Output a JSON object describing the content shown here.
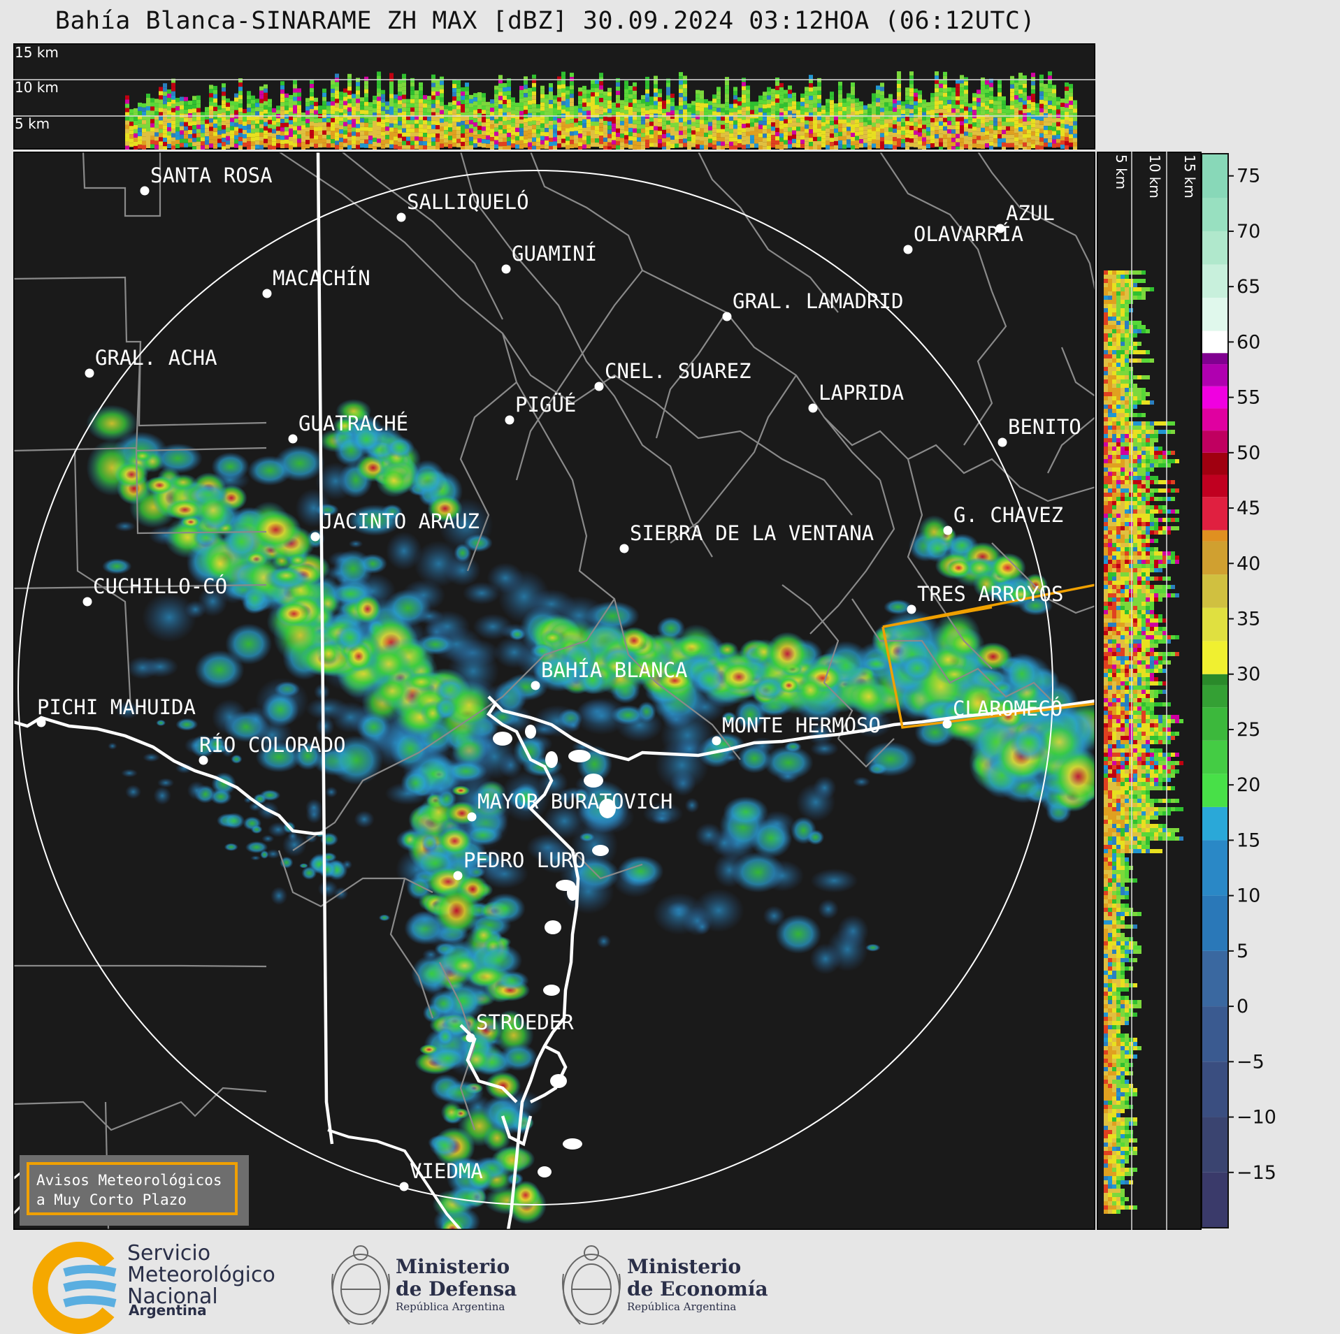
{
  "title": "Bahía Blanca-SINARAME ZH MAX [dBZ] 30.09.2024 03:12HOA (06:12UTC)",
  "top_section": {
    "altitude_labels": [
      "15 km",
      "10 km",
      "5 km"
    ]
  },
  "right_section": {
    "altitude_labels": [
      "5 km",
      "10 km",
      "15 km"
    ]
  },
  "map": {
    "cities": [
      {
        "name": "SANTA ROSA"
      },
      {
        "name": "SALLIQUELÓ"
      },
      {
        "name": "GUAMINÍ"
      },
      {
        "name": "AZUL"
      },
      {
        "name": "OLAVARRÍA"
      },
      {
        "name": "MACACHÍN"
      },
      {
        "name": "GRAL. LAMADRID"
      },
      {
        "name": "GRAL. ACHA"
      },
      {
        "name": "CNEL. SUAREZ"
      },
      {
        "name": "LAPRIDA"
      },
      {
        "name": "PIGÜÉ"
      },
      {
        "name": "GUATRACHÉ"
      },
      {
        "name": "BENITO"
      },
      {
        "name": "G. CHAVEZ"
      },
      {
        "name": "JACINTO ARAUZ"
      },
      {
        "name": "SIERRA DE LA VENTANA"
      },
      {
        "name": "CUCHILLO-CÓ"
      },
      {
        "name": "TRES ARROYOS"
      },
      {
        "name": "BAHÍA BLANCA"
      },
      {
        "name": "CLAROMECÓ"
      },
      {
        "name": "PICHI MAHUIDA"
      },
      {
        "name": "MONTE HERMOSO"
      },
      {
        "name": "RÍO COLORADO"
      },
      {
        "name": "MAYOR BURATOVICH"
      },
      {
        "name": "PEDRO LURO"
      },
      {
        "name": "STROEDER"
      },
      {
        "name": "VIEDMA"
      }
    ],
    "warning_box": {
      "line1": "Avisos Meteorológicos",
      "line2": "a Muy Corto Plazo"
    },
    "warning_polygon_color": "#f0a000"
  },
  "colorbar": {
    "unit": "dBZ",
    "ticks": [
      "75",
      "70",
      "65",
      "60",
      "55",
      "50",
      "45",
      "40",
      "35",
      "30",
      "25",
      "20",
      "15",
      "10",
      "5",
      "0",
      "−5",
      "−10",
      "−15"
    ],
    "tick_values": [
      75,
      70,
      65,
      60,
      55,
      50,
      45,
      40,
      35,
      30,
      25,
      20,
      15,
      10,
      5,
      0,
      -5,
      -10,
      -15
    ],
    "range": [
      -20,
      77
    ]
  },
  "footer": {
    "smn": {
      "line1": "Servicio",
      "line2": "Meteorológico",
      "line3": "Nacional",
      "country": "Argentina"
    },
    "defensa": {
      "line1": "Ministerio",
      "line2": "de Defensa",
      "sub": "República Argentina"
    },
    "economia": {
      "line1": "Ministerio",
      "line2": "de Economía",
      "sub": "República Argentina"
    }
  }
}
